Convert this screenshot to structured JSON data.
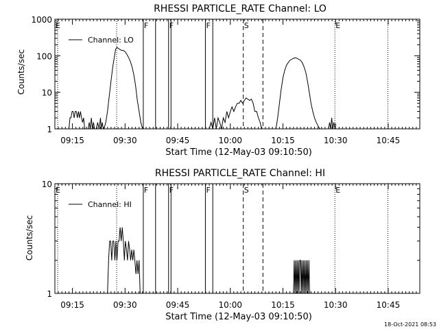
{
  "timestamp": "18-Oct-2021 08:53",
  "chart_data": [
    {
      "type": "line",
      "title": "RHESSI PARTICLE_RATE Channel: LO",
      "xlabel": "Start Time (12-May-03 09:10:50)",
      "ylabel": "Counts/sec",
      "yscale": "log",
      "ylim": [
        1,
        1000
      ],
      "xlim_minutes_after_0910": [
        0,
        104
      ],
      "xticks": [
        {
          "minutes": 5,
          "label": "09:15"
        },
        {
          "minutes": 20,
          "label": "09:30"
        },
        {
          "minutes": 35,
          "label": "09:45"
        },
        {
          "minutes": 50,
          "label": "10:00"
        },
        {
          "minutes": 65,
          "label": "10:15"
        },
        {
          "minutes": 80,
          "label": "10:30"
        },
        {
          "minutes": 95,
          "label": "10:45"
        }
      ],
      "yticks": [
        {
          "value": 1,
          "label": "1"
        },
        {
          "value": 10,
          "label": "10"
        },
        {
          "value": 100,
          "label": "100"
        },
        {
          "value": 1000,
          "label": "1000"
        }
      ],
      "legend": {
        "label": "Channel: LO",
        "position": "top-left"
      },
      "markers": [
        {
          "label": "E",
          "minutes": 0.8,
          "style": "dotted"
        },
        {
          "label": "",
          "minutes": 17.6,
          "style": "dotted"
        },
        {
          "label": "F",
          "minutes": 25.2,
          "style": "solid"
        },
        {
          "label": "",
          "minutes": 28.7,
          "style": "solid"
        },
        {
          "label": "F",
          "minutes": 32.4,
          "style": "solid"
        },
        {
          "label": "",
          "minutes": 33.1,
          "style": "solid"
        },
        {
          "label": "F",
          "minutes": 42.9,
          "style": "solid"
        },
        {
          "label": "",
          "minutes": 45.0,
          "style": "solid"
        },
        {
          "label": "S",
          "minutes": 53.7,
          "style": "dashed"
        },
        {
          "label": "",
          "minutes": 59.3,
          "style": "dashed"
        },
        {
          "label": "E",
          "minutes": 79.8,
          "style": "dotted"
        },
        {
          "label": "",
          "minutes": 94.9,
          "style": "dotted"
        }
      ],
      "series": [
        {
          "name": "Channel: LO",
          "segments": [
            {
              "x": [
                4.0,
                4.3,
                4.6,
                4.9,
                5.2,
                5.5,
                5.8,
                6.1,
                6.4,
                6.7,
                7.0,
                7.3,
                7.6,
                7.9,
                8.2,
                8.5
              ],
              "y": [
                1,
                2,
                2,
                3,
                3,
                2,
                3,
                3,
                2,
                3,
                2,
                3,
                2,
                1.5,
                2,
                1
              ]
            },
            {
              "x": [
                9.5,
                9.8,
                10.1,
                10.4,
                10.7,
                11.0,
                11.3,
                11.6
              ],
              "y": [
                1,
                1.5,
                1,
                2,
                1,
                1.5,
                1,
                1
              ]
            },
            {
              "x": [
                11.8,
                12.2,
                12.6,
                13.0,
                13.2,
                13.5,
                13.8,
                14.0
              ],
              "y": [
                1,
                1.5,
                1,
                2,
                1,
                1.5,
                1,
                1
              ]
            },
            {
              "x": [
                14.0,
                14.5,
                15.0,
                15.5,
                16.0,
                16.5,
                17.0,
                17.3,
                17.7,
                18.0,
                18.5,
                19.0,
                19.5,
                20.0,
                20.5,
                21.0,
                21.5,
                22.0,
                22.5,
                23.0,
                23.5,
                24.0,
                24.5,
                25.0,
                25.3
              ],
              "y": [
                1,
                1.5,
                3,
                8,
                20,
                50,
                100,
                150,
                170,
                160,
                150,
                140,
                140,
                130,
                110,
                90,
                70,
                50,
                30,
                15,
                6,
                3,
                1.5,
                1,
                1
              ]
            },
            {
              "x": [
                44.0,
                44.5,
                45.0,
                45.5,
                46.0,
                46.5,
                47.0,
                47.5,
                48.0,
                48.5,
                49.0,
                49.5,
                50.0,
                50.5,
                51.0,
                51.5,
                52.0,
                52.5,
                53.0,
                53.5,
                54.0,
                54.5,
                55.0,
                55.5,
                56.0,
                56.5,
                57.0,
                57.5,
                58.0,
                58.5,
                58.9
              ],
              "y": [
                1,
                1.5,
                1,
                2,
                1,
                2,
                1.5,
                1,
                2,
                1.5,
                3,
                2,
                3,
                4,
                3,
                4,
                5,
                5,
                6,
                5,
                6,
                7,
                6.5,
                6,
                6.5,
                5,
                3,
                3,
                2,
                1.5,
                1
              ]
            },
            {
              "x": [
                63.0,
                63.5,
                64.0,
                64.5,
                65.0,
                65.5,
                66.0,
                66.5,
                67.0,
                67.5,
                68.0,
                68.5,
                69.0,
                69.5,
                70.0,
                70.5,
                71.0,
                71.5,
                72.0,
                72.5,
                73.0,
                73.5,
                74.0,
                74.5,
                75.0,
                75.5
              ],
              "y": [
                1,
                2,
                5,
                12,
                25,
                40,
                55,
                65,
                75,
                80,
                85,
                88,
                85,
                80,
                75,
                65,
                50,
                35,
                20,
                10,
                5,
                3,
                2,
                1.5,
                1.2,
                1
              ]
            },
            {
              "x": [
                78.0,
                78.3,
                78.6,
                78.9,
                79.2,
                79.5,
                79.8
              ],
              "y": [
                1,
                1.5,
                1,
                2,
                1,
                1.5,
                1
              ]
            }
          ]
        }
      ]
    },
    {
      "type": "line",
      "title": "RHESSI PARTICLE_RATE Channel: HI",
      "xlabel": "Start Time (12-May-03 09:10:50)",
      "ylabel": "Counts/sec",
      "yscale": "log",
      "ylim": [
        1,
        10
      ],
      "xlim_minutes_after_0910": [
        0,
        104
      ],
      "xticks": [
        {
          "minutes": 5,
          "label": "09:15"
        },
        {
          "minutes": 20,
          "label": "09:30"
        },
        {
          "minutes": 35,
          "label": "09:45"
        },
        {
          "minutes": 50,
          "label": "10:00"
        },
        {
          "minutes": 65,
          "label": "10:15"
        },
        {
          "minutes": 80,
          "label": "10:30"
        },
        {
          "minutes": 95,
          "label": "10:45"
        }
      ],
      "yticks": [
        {
          "value": 1,
          "label": "1"
        },
        {
          "value": 10,
          "label": "10"
        }
      ],
      "legend": {
        "label": "Channel: HI",
        "position": "top-left"
      },
      "markers": [
        {
          "label": "E",
          "minutes": 0.8,
          "style": "dotted"
        },
        {
          "label": "",
          "minutes": 17.6,
          "style": "dotted"
        },
        {
          "label": "F",
          "minutes": 25.2,
          "style": "solid"
        },
        {
          "label": "",
          "minutes": 28.7,
          "style": "solid"
        },
        {
          "label": "F",
          "minutes": 32.4,
          "style": "solid"
        },
        {
          "label": "",
          "minutes": 33.1,
          "style": "solid"
        },
        {
          "label": "F",
          "minutes": 42.9,
          "style": "solid"
        },
        {
          "label": "",
          "minutes": 45.0,
          "style": "solid"
        },
        {
          "label": "S",
          "minutes": 53.7,
          "style": "dashed"
        },
        {
          "label": "",
          "minutes": 59.3,
          "style": "dashed"
        },
        {
          "label": "E",
          "minutes": 79.8,
          "style": "dotted"
        },
        {
          "label": "",
          "minutes": 94.9,
          "style": "dotted"
        }
      ],
      "series": [
        {
          "name": "Channel: HI",
          "segments": [
            {
              "x": [
                15.0,
                15.3,
                15.6,
                15.9,
                16.2,
                16.5,
                16.8,
                17.1,
                17.4,
                17.7,
                18.0,
                18.3,
                18.6,
                18.9,
                19.2,
                19.5,
                19.8,
                20.1,
                20.4,
                20.7,
                21.0,
                21.3,
                21.6,
                21.9,
                22.2,
                22.5,
                22.8,
                23.1,
                23.4,
                23.7,
                24.0,
                24.3
              ],
              "y": [
                1,
                2,
                3,
                3,
                2,
                3,
                3,
                2,
                3,
                2,
                3,
                3,
                4,
                3,
                4,
                3,
                2,
                3,
                2.5,
                2,
                3,
                2.5,
                2,
                2.5,
                2,
                2.5,
                2,
                1.5,
                2,
                1.5,
                2,
                1
              ]
            },
            {
              "x": [
                68.0,
                68.2,
                68.4,
                68.6,
                68.8,
                69.0,
                69.2,
                69.4,
                69.6,
                69.8,
                70.0,
                70.2,
                70.4,
                70.6,
                70.8,
                71.0,
                71.2,
                71.4,
                71.6,
                71.8,
                72.0,
                72.2,
                72.4,
                72.6,
                72.8,
                73.0
              ],
              "y": [
                1,
                2,
                1,
                2,
                1,
                2,
                1,
                2,
                1,
                2,
                2,
                1,
                2,
                1,
                2,
                1,
                2,
                1,
                2,
                1,
                2,
                1,
                2,
                1,
                1,
                1
              ]
            }
          ]
        }
      ]
    }
  ]
}
